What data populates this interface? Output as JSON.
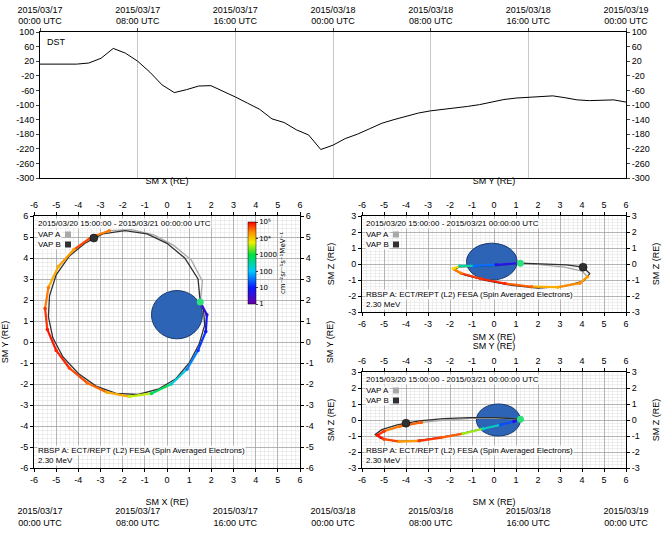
{
  "chart_data": [
    {
      "type": "line",
      "title": "DST",
      "color": "#000000",
      "grid": "x",
      "x": [
        "2015-03-17 00:00",
        "2015-03-17 01:00",
        "2015-03-17 02:00",
        "2015-03-17 03:00",
        "2015-03-17 04:00",
        "2015-03-17 05:00",
        "2015-03-17 06:00",
        "2015-03-17 07:00",
        "2015-03-17 08:00",
        "2015-03-17 09:00",
        "2015-03-17 10:00",
        "2015-03-17 11:00",
        "2015-03-17 12:00",
        "2015-03-17 13:00",
        "2015-03-17 14:00",
        "2015-03-17 15:00",
        "2015-03-17 16:00",
        "2015-03-17 17:00",
        "2015-03-17 18:00",
        "2015-03-17 19:00",
        "2015-03-17 20:00",
        "2015-03-17 21:00",
        "2015-03-17 22:00",
        "2015-03-17 23:00",
        "2015-03-18 00:00",
        "2015-03-18 01:00",
        "2015-03-18 02:00",
        "2015-03-18 03:00",
        "2015-03-18 04:00",
        "2015-03-18 05:00",
        "2015-03-18 06:00",
        "2015-03-18 07:00",
        "2015-03-18 08:00",
        "2015-03-18 09:00",
        "2015-03-18 10:00",
        "2015-03-18 11:00",
        "2015-03-18 12:00",
        "2015-03-18 13:00",
        "2015-03-18 14:00",
        "2015-03-18 15:00",
        "2015-03-18 16:00",
        "2015-03-18 17:00",
        "2015-03-18 18:00",
        "2015-03-18 19:00",
        "2015-03-18 20:00",
        "2015-03-18 21:00",
        "2015-03-18 22:00",
        "2015-03-18 23:00",
        "2015-03-19 00:00"
      ],
      "values": [
        12,
        12,
        11,
        12,
        15,
        28,
        55,
        42,
        20,
        -10,
        -45,
        -66,
        -58,
        -48,
        -47,
        -62,
        -78,
        -95,
        -112,
        -138,
        -148,
        -168,
        -182,
        -222,
        -210,
        -192,
        -180,
        -165,
        -150,
        -140,
        -130,
        -122,
        -116,
        -112,
        -110,
        -104,
        -99,
        -92,
        -85,
        -81,
        -79,
        -76,
        -75,
        -80,
        -86,
        -88,
        -88,
        -86,
        -92
      ],
      "xlim": [
        "2015-03-17 00:00",
        "2015-03-19 00:00"
      ],
      "xticks": [
        {
          "value": "2015-03-17 00:00",
          "label": "2015/03/17 00:00 UTC"
        },
        {
          "value": "2015-03-17 08:00",
          "label": "2015/03/17 08:00 UTC"
        },
        {
          "value": "2015-03-17 16:00",
          "label": "2015/03/17 16:00 UTC"
        },
        {
          "value": "2015-03-18 00:00",
          "label": "2015/03/18 00:00 UTC"
        },
        {
          "value": "2015-03-18 08:00",
          "label": "2015/03/18 08:00 UTC"
        },
        {
          "value": "2015-03-18 16:00",
          "label": "2015/03/18 16:00 UTC"
        },
        {
          "value": "2015-03-19 00:00",
          "label": "2015/03/19 00:00 UTC"
        }
      ],
      "ylim": [
        -300,
        100
      ],
      "yticks": [
        100,
        60,
        20,
        -20,
        -60,
        -100,
        -140,
        -180,
        -220,
        -260,
        -300
      ]
    },
    {
      "type": "scatter",
      "subtitle": "2015/03/20 15:00:00 - 2015/03/21 00:00:00 UTC",
      "annotations": [
        "RBSP A: ECT/REPT (L2) FESA (Spin Averaged Electrons)",
        "2.30 MeV"
      ],
      "x_label": "SM X (RE)",
      "y_label": "SM Y (RE)",
      "xlim": [
        -6,
        6
      ],
      "ylim": [
        -6,
        6
      ],
      "xticks": [
        -6,
        -5,
        -4,
        -3,
        -2,
        -1,
        0,
        1,
        2,
        3,
        4,
        5,
        6
      ],
      "yticks": [
        -6,
        -5,
        -4,
        -3,
        -2,
        -1,
        0,
        1,
        2,
        3,
        4,
        5,
        6
      ],
      "grid": true,
      "legend": "upper left",
      "series": [
        {
          "name": "VAP A",
          "color": "#a8a8a8",
          "x": [
            1.5,
            1.6,
            1.1,
            0.3,
            -0.6,
            -1.6,
            -2.6,
            -3.4,
            -4.2,
            -4.9,
            -5.35,
            -5.5,
            -5.4,
            -5.0,
            -4.4,
            -3.6,
            -2.7,
            -1.7,
            -0.7,
            0.2,
            0.9,
            1.4,
            1.75,
            1.8,
            1.5
          ],
          "y": [
            1.9,
            2.9,
            3.9,
            4.6,
            5.1,
            5.35,
            5.3,
            5.0,
            4.4,
            3.6,
            2.6,
            1.6,
            0.6,
            -0.4,
            -1.25,
            -1.95,
            -2.4,
            -2.6,
            -2.45,
            -2.0,
            -1.3,
            -0.4,
            0.5,
            1.3,
            1.9
          ]
        },
        {
          "name": "VAP B",
          "color": "#303030",
          "x": [
            1.5,
            1.4,
            0.8,
            0.0,
            -0.9,
            -1.9,
            -2.9,
            -3.7,
            -4.4,
            -5.0,
            -5.3,
            -5.35,
            -5.15,
            -4.7,
            -4.0,
            -3.2,
            -2.3,
            -1.3,
            -0.4,
            0.4,
            1.0,
            1.45,
            1.7,
            1.65,
            1.5
          ],
          "y": [
            1.9,
            3.0,
            4.0,
            4.7,
            5.15,
            5.3,
            5.15,
            4.7,
            4.1,
            3.2,
            2.2,
            1.2,
            0.2,
            -0.7,
            -1.5,
            -2.1,
            -2.45,
            -2.5,
            -2.25,
            -1.75,
            -1.0,
            -0.1,
            0.8,
            1.5,
            1.9
          ],
          "position": {
            "x": -3.3,
            "y": 4.95
          }
        }
      ],
      "flux": {
        "x": [
          -2.6,
          -3.4,
          -4.2,
          -4.9,
          -5.35,
          -5.5,
          -5.4,
          -5.0,
          -4.4,
          -3.6,
          -2.7,
          -1.7,
          -0.7,
          0.2,
          0.9,
          1.4,
          1.75,
          1.8,
          1.5
        ],
        "y": [
          5.3,
          5.0,
          4.4,
          3.6,
          2.6,
          1.6,
          0.6,
          -0.4,
          -1.25,
          -1.95,
          -2.4,
          -2.6,
          -2.45,
          -2.0,
          -1.3,
          -0.4,
          0.5,
          1.3,
          1.9
        ],
        "values": [
          30000,
          50000,
          20000,
          15000,
          30000,
          60000,
          80000,
          70000,
          50000,
          35000,
          15000,
          4000,
          700,
          150,
          40,
          15,
          8,
          4,
          2
        ]
      },
      "markers": [
        {
          "x": 1.5,
          "y": 1.9,
          "color": "#2ee07a"
        }
      ],
      "earth": {
        "x": 0.45,
        "y": 1.3,
        "radius": 1.15
      },
      "colorbar": {
        "range": [
          1,
          100000
        ],
        "log": true,
        "label": "cm⁻²sr⁻¹s⁻¹MeV⁻¹",
        "ticks": [
          1,
          10,
          100,
          1000,
          {
            "value": 10000,
            "label": "10⁴"
          },
          {
            "value": 100000,
            "label": "10⁵"
          }
        ]
      }
    },
    {
      "type": "scatter",
      "subtitle": "2015/03/20 15:00:00 - 2015/03/21 00:00:00 UTC",
      "annotations": [
        "RBSP A: ECT/REPT (L2) FESA (Spin Averaged Electrons)",
        "2.30 MeV"
      ],
      "x_label": "SM Y (RE)",
      "y_label": "SM Z (RE)",
      "xlim": [
        -6,
        6
      ],
      "ylim": [
        -3,
        3
      ],
      "xticks": [
        -6,
        -5,
        -4,
        -3,
        -2,
        -1,
        0,
        1,
        2,
        3,
        4,
        5,
        6
      ],
      "yticks": [
        -3,
        -2,
        -1,
        0,
        1,
        2,
        3
      ],
      "grid": true,
      "legend": "upper left",
      "series": [
        {
          "name": "VAP A",
          "color": "#a8a8a8",
          "x": [
            1.2,
            2.2,
            3.2,
            4.0,
            4.25,
            3.9,
            2.9,
            1.7,
            0.5,
            -0.6,
            -1.5,
            -1.85,
            -1.55,
            -0.9,
            0.1,
            1.2
          ],
          "y": [
            0.05,
            -0.05,
            -0.2,
            -0.45,
            -0.8,
            -1.2,
            -1.45,
            -1.42,
            -1.22,
            -0.92,
            -0.58,
            -0.3,
            -0.12,
            -0.12,
            -0.05,
            0.05
          ]
        },
        {
          "name": "VAP B",
          "color": "#303030",
          "x": [
            1.2,
            2.3,
            3.3,
            4.05,
            4.35,
            4.1,
            3.2,
            2.0,
            0.8,
            -0.4,
            -1.35,
            -1.8,
            -1.6,
            -0.9,
            0.1,
            1.2
          ],
          "y": [
            0.05,
            0.02,
            -0.05,
            -0.2,
            -0.6,
            -1.05,
            -1.4,
            -1.5,
            -1.33,
            -1.02,
            -0.68,
            -0.38,
            -0.18,
            -0.15,
            -0.08,
            0.05
          ],
          "position": {
            "x": 4.05,
            "y": -0.2
          }
        }
      ],
      "flux": {
        "x": [
          4.25,
          3.9,
          2.9,
          1.7,
          0.5,
          -0.6,
          -1.5,
          -1.85,
          -1.55,
          -0.9,
          0.1,
          1.2
        ],
        "y": [
          -0.8,
          -1.2,
          -1.45,
          -1.42,
          -1.22,
          -0.92,
          -0.58,
          -0.3,
          -0.12,
          -0.12,
          -0.05,
          0.05
        ],
        "values": [
          20000,
          25000,
          15000,
          40000,
          70000,
          60000,
          30000,
          8000,
          300,
          30,
          5,
          2
        ]
      },
      "markers": [
        {
          "x": 1.2,
          "y": 0.05,
          "color": "#2ee07a"
        }
      ],
      "earth": {
        "x": -0.1,
        "y": 0.15,
        "radius": 1.15
      }
    },
    {
      "type": "scatter",
      "subtitle": "2015/03/20 15:00:00 - 2015/03/21 00:00:00 UTC",
      "annotations": [
        "RBSP A: ECT/REPT (L2) FESA (Spin Averaged Electrons)",
        "2.30 MeV"
      ],
      "x_label": "SM X (RE)",
      "y_label": "SM Z (RE)",
      "xlim": [
        -6,
        6
      ],
      "ylim": [
        -3,
        3
      ],
      "xticks": [
        -6,
        -5,
        -4,
        -3,
        -2,
        -1,
        0,
        1,
        2,
        3,
        4,
        5,
        6
      ],
      "yticks": [
        -3,
        -2,
        -1,
        0,
        1,
        2,
        3
      ],
      "grid": true,
      "legend": "upper left",
      "series": [
        {
          "name": "VAP A",
          "color": "#a8a8a8",
          "x": [
            1.2,
            0.2,
            -1.0,
            -2.2,
            -3.3,
            -4.3,
            -5.0,
            -5.3,
            -5.0,
            -4.3,
            -3.4,
            -2.4,
            -1.4,
            -0.5,
            0.3,
            0.9,
            1.2
          ],
          "y": [
            0.05,
            0.12,
            0.1,
            0.0,
            -0.15,
            -0.4,
            -0.7,
            -0.95,
            -1.2,
            -1.35,
            -1.3,
            -1.1,
            -0.85,
            -0.55,
            -0.3,
            -0.1,
            0.05
          ]
        },
        {
          "name": "VAP B",
          "color": "#303030",
          "x": [
            1.2,
            0.1,
            -1.1,
            -2.3,
            -3.4,
            -4.4,
            -5.1,
            -5.4,
            -5.15,
            -4.5,
            -3.6,
            -2.6,
            -1.6,
            -0.7,
            0.2,
            0.85,
            1.2
          ],
          "y": [
            0.05,
            0.15,
            0.15,
            0.08,
            -0.05,
            -0.3,
            -0.6,
            -0.9,
            -1.15,
            -1.32,
            -1.3,
            -1.12,
            -0.88,
            -0.6,
            -0.33,
            -0.12,
            0.05
          ],
          "position": {
            "x": -4.0,
            "y": -0.2
          }
        }
      ],
      "flux": {
        "x": [
          -3.3,
          -4.3,
          -5.0,
          -5.3,
          -5.0,
          -4.3,
          -3.4,
          -2.4,
          -1.4,
          -0.5,
          0.3,
          0.9,
          1.2
        ],
        "y": [
          -0.15,
          -0.4,
          -0.7,
          -0.95,
          -1.2,
          -1.35,
          -1.3,
          -1.1,
          -0.85,
          -0.55,
          -0.3,
          -0.1,
          0.05
        ],
        "values": [
          40000,
          30000,
          60000,
          80000,
          50000,
          20000,
          60000,
          40000,
          3000,
          200,
          20,
          5,
          2
        ]
      },
      "markers": [
        {
          "x": 1.2,
          "y": 0.05,
          "color": "#2ee07a"
        }
      ],
      "earth": {
        "x": 0.2,
        "y": 0.0,
        "radius": 1.0
      }
    }
  ]
}
